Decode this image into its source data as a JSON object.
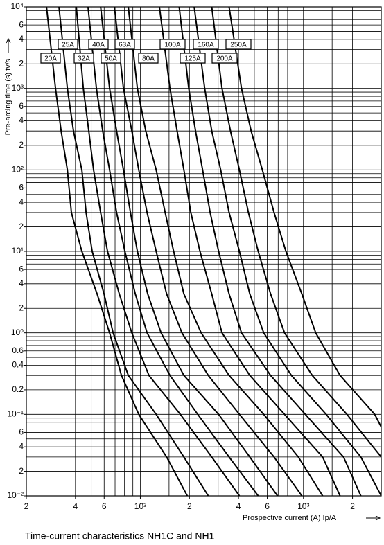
{
  "chart_data": {
    "type": "line",
    "title": "Time-current characteristics NH1C and NH1",
    "x_label": "Prospective current (A) Ip/A",
    "y_label": "Pre-arcing time (s) tv/s",
    "xscale": "log",
    "yscale": "log",
    "grid": true,
    "xlim": [
      20,
      3000
    ],
    "ylim": [
      0.01,
      10000
    ],
    "xticks": [
      {
        "value": 20,
        "label": "2"
      },
      {
        "value": 40,
        "label": "4"
      },
      {
        "value": 60,
        "label": "6"
      },
      {
        "value": 100,
        "label": "10²"
      },
      {
        "value": 200,
        "label": "2"
      },
      {
        "value": 400,
        "label": "4"
      },
      {
        "value": 600,
        "label": "6"
      },
      {
        "value": 1000,
        "label": "10³"
      },
      {
        "value": 2000,
        "label": "2"
      }
    ],
    "yticks": [
      {
        "value": 10000,
        "label": "10⁴"
      },
      {
        "value": 6000,
        "label": "6"
      },
      {
        "value": 4000,
        "label": "4"
      },
      {
        "value": 2000,
        "label": "2"
      },
      {
        "value": 1000,
        "label": "10³"
      },
      {
        "value": 600,
        "label": "6"
      },
      {
        "value": 400,
        "label": "4"
      },
      {
        "value": 200,
        "label": "2"
      },
      {
        "value": 100,
        "label": "10²"
      },
      {
        "value": 60,
        "label": "6"
      },
      {
        "value": 40,
        "label": "4"
      },
      {
        "value": 20,
        "label": "2"
      },
      {
        "value": 10,
        "label": "10¹"
      },
      6,
      4,
      2,
      {
        "value": 1,
        "label": "10⁰"
      },
      0.6,
      0.4,
      0.2,
      {
        "value": 0.1,
        "label": "10⁻¹"
      },
      {
        "value": 0.06,
        "label": "6"
      },
      {
        "value": 0.04,
        "label": "4"
      },
      {
        "value": 0.02,
        "label": "2"
      },
      {
        "value": 0.01,
        "label": "10⁻²"
      }
    ],
    "xgrid": [
      30,
      40,
      50,
      60,
      70,
      80,
      90,
      100,
      150,
      200,
      300,
      400,
      500,
      600,
      700,
      800,
      1000,
      1500,
      2000
    ],
    "ygrid": [
      0.02,
      0.03,
      0.04,
      0.05,
      0.06,
      0.07,
      0.08,
      0.09,
      0.1,
      0.2,
      0.3,
      0.4,
      0.5,
      0.6,
      0.7,
      0.8,
      0.9,
      1,
      2,
      3,
      4,
      5,
      6,
      7,
      8,
      9,
      10,
      20,
      30,
      40,
      50,
      60,
      70,
      80,
      90,
      100,
      200,
      300,
      400,
      500,
      600,
      700,
      800,
      900,
      1000,
      2000,
      3000,
      4000,
      5000,
      6000,
      7000,
      8000,
      9000
    ],
    "color": "#000000",
    "series": [
      {
        "name": "20A",
        "x": [
          26.6,
          30.2,
          32.7,
          35.7,
          37.8,
          43.8,
          54.3,
          64.8,
          76.6,
          97.8,
          145,
          194
        ],
        "values": [
          10000,
          1000,
          300,
          100,
          30,
          10,
          3,
          1,
          0.3,
          0.1,
          0.03,
          0.01
        ]
      },
      {
        "name": "25A",
        "x": [
          31.7,
          35.7,
          38.9,
          43.8,
          46.5,
          50.7,
          59.9,
          68.1,
          84.4,
          125,
          185,
          261
        ],
        "values": [
          10000,
          1000,
          300,
          100,
          30,
          10,
          3,
          1,
          0.3,
          0.1,
          0.03,
          0.01
        ]
      },
      {
        "name": "32A",
        "x": [
          40.5,
          44.7,
          48.3,
          51.7,
          57.1,
          62.9,
          74.3,
          88.7,
          113,
          176,
          274,
          405
        ],
        "values": [
          10000,
          1000,
          300,
          100,
          30,
          10,
          3,
          1,
          0.3,
          0.1,
          0.03,
          0.01
        ]
      },
      {
        "name": "40A",
        "x": [
          47.8,
          53.8,
          58.8,
          64.8,
          71.5,
          80.4,
          93.1,
          110,
          152,
          225,
          350,
          528
        ],
        "values": [
          10000,
          1000,
          300,
          100,
          30,
          10,
          3,
          1,
          0.3,
          0.1,
          0.03,
          0.01
        ]
      },
      {
        "name": "50A",
        "x": [
          57.1,
          64.8,
          71.5,
          78.8,
          87,
          95.9,
          111,
          134,
          185,
          302,
          469,
          694
        ],
        "values": [
          10000,
          1000,
          300,
          100,
          30,
          10,
          3,
          1,
          0.3,
          0.1,
          0.03,
          0.01
        ]
      },
      {
        "name": "63A",
        "x": [
          69.4,
          78.8,
          88.7,
          97.8,
          110,
          125,
          145,
          180,
          261,
          405,
          661,
          978
        ],
        "values": [
          10000,
          1000,
          300,
          100,
          30,
          10,
          3,
          1,
          0.3,
          0.1,
          0.03,
          0.01
        ]
      },
      {
        "name": "80A",
        "x": [
          84.4,
          95.9,
          108,
          125,
          142,
          160,
          185,
          236,
          350,
          571,
          931,
          1312
        ],
        "values": [
          10000,
          1000,
          300,
          100,
          30,
          10,
          3,
          1,
          0.3,
          0.1,
          0.03,
          0.01
        ]
      },
      {
        "name": "100A",
        "x": [
          131,
          152,
          168,
          185,
          204,
          232,
          274,
          317,
          469,
          766,
          1312,
          1677
        ],
        "values": [
          10000,
          1000,
          300,
          100,
          30,
          10,
          3,
          1,
          0.3,
          0.1,
          0.03,
          0.01
        ]
      },
      {
        "name": "125A",
        "x": [
          173,
          198,
          218,
          241,
          268,
          302,
          350,
          417,
          629,
          1027,
          1762,
          2250
        ],
        "values": [
          10000,
          1000,
          300,
          100,
          30,
          10,
          3,
          1,
          0.3,
          0.1,
          0.03,
          0.01
        ]
      },
      {
        "name": "160A",
        "x": [
          214,
          248,
          274,
          311,
          350,
          405,
          469,
          571,
          844,
          1378,
          2250,
          3000
        ],
        "values": [
          10000,
          1000,
          300,
          100,
          30,
          10,
          3,
          1,
          0.3,
          0.1,
          0.03,
          0.01
        ]
      },
      {
        "name": "200A",
        "x": [
          274,
          317,
          357,
          405,
          460,
          528,
          629,
          766,
          1133,
          1849,
          3000
        ],
        "values": [
          10000,
          1000,
          300,
          100,
          30,
          10,
          3,
          1,
          0.3,
          0.1,
          0.03
        ]
      },
      {
        "name": "250A",
        "x": [
          350,
          417,
          478,
          560,
          661,
          781,
          978,
          1190,
          1677,
          2735,
          3000
        ],
        "values": [
          10000,
          1000,
          300,
          100,
          30,
          10,
          3,
          1,
          0.3,
          0.1,
          0.07
        ]
      }
    ]
  }
}
